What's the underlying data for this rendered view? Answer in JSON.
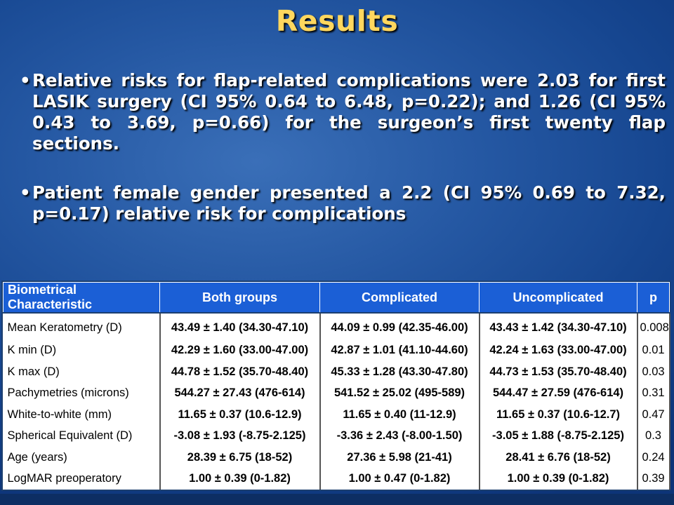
{
  "title": "Results",
  "bullets": [
    "Relative risks for flap-related complications were 2.03 for first LASIK surgery (CI 95% 0.64 to 6.48, p=0.22); and 1.26 (CI 95% 0.43 to 3.69, p=0.66) for the surgeon’s first twenty flap sections.",
    "Patient female gender presented a 2.2 (CI 95% 0.69 to 7.32, p=0.17) relative risk for complications"
  ],
  "table": {
    "headers": [
      "Biometrical Characteristic",
      "Both groups",
      "Complicated",
      "Uncomplicated",
      "p"
    ],
    "rows": [
      [
        "Mean Keratometry (D)",
        "43.49 ± 1.40 (34.30-47.10)",
        "44.09 ± 0.99 (42.35-46.00)",
        "43.43 ± 1.42 (34.30-47.10)",
        "0.008"
      ],
      [
        "K min (D)",
        "42.29 ± 1.60 (33.00-47.00)",
        "42.87 ± 1.01 (41.10-44.60)",
        "42.24 ± 1.63 (33.00-47.00)",
        "0.01"
      ],
      [
        "K max (D)",
        "44.78 ± 1.52 (35.70-48.40)",
        "45.33 ± 1.28 (43.30-47.80)",
        "44.73 ± 1.53 (35.70-48.40)",
        "0.03"
      ],
      [
        "Pachymetries (microns)",
        "544.27 ± 27.43 (476-614)",
        "541.52 ± 25.02 (495-589)",
        "544.47 ± 27.59 (476-614)",
        "0.31"
      ],
      [
        "White-to-white (mm)",
        "11.65 ±  0.37 (10.6-12.9)",
        "11.65 ± 0.40 (11-12.9)",
        "11.65 ± 0.37 (10.6-12.7)",
        "0.47"
      ],
      [
        "Spherical Equivalent (D)",
        "-3.08 ±  1.93 (-8.75-2.125)",
        "-3.36 ± 2.43 (-8.00-1.50)",
        "-3.05 ±  1.88 (-8.75-2.125)",
        "0.3"
      ],
      [
        "Age (years)",
        "28.39 ± 6.75 (18-52)",
        "27.36 ± 5.98 (21-41)",
        "28.41 ± 6.76 (18-52)",
        "0.24"
      ],
      [
        "LogMAR preoperatory",
        "1.00 ± 0.39 (0-1.82)",
        "1.00 ± 0.47 (0-1.82)",
        "1.00 ± 0.39 (0-1.82)",
        "0.39"
      ]
    ]
  },
  "colors": {
    "title": "#ffd75e",
    "header_bg": "#1b5fd6",
    "background": "#164690"
  }
}
